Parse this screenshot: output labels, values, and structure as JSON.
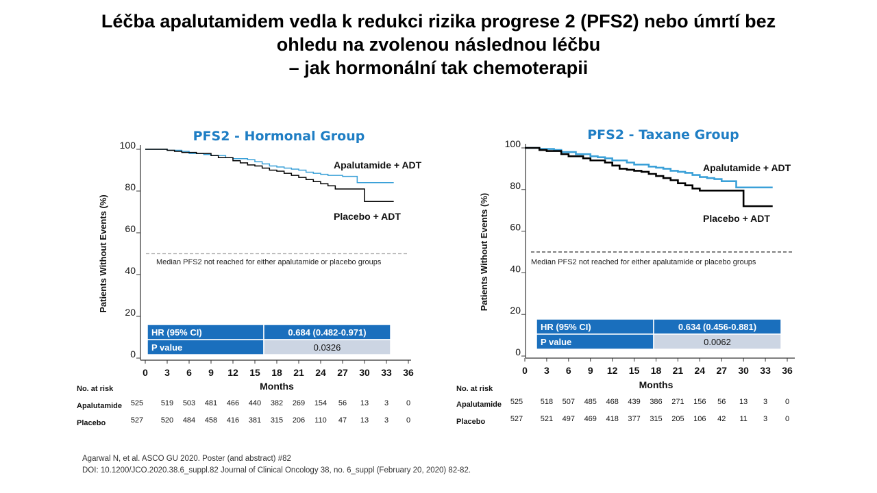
{
  "slide": {
    "title_lines": [
      "Léčba apalutamidem vedla k redukci rizika progrese 2 (PFS2) nebo úmrtí bez",
      "ohledu na zvolenou následnou léčbu",
      "– jak hormonální tak chemoterapii"
    ],
    "references": [
      "Agarwal N, et al. ASCO GU 2020. Poster (and abstract) #82",
      "DOI: 10.1200/JCO.2020.38.6_suppl.82  Journal of Clinical Oncology 38, no. 6_suppl (February 20, 2020) 82-82."
    ]
  },
  "colors": {
    "apalutamide": "#3aa0d8",
    "placebo": "#000000",
    "title_blue": "#1f7ec4",
    "table_blue": "#1a6fbd",
    "table_grey": "#ccd5e3",
    "median_line": "#999999"
  },
  "chart_data": [
    {
      "type": "line",
      "title": "PFS2 - Hormonal Group",
      "xlabel": "Months",
      "ylabel": "Patients Without Events (%)",
      "xlim": [
        0,
        36
      ],
      "ylim": [
        0,
        100
      ],
      "x_ticks": [
        0,
        3,
        6,
        9,
        12,
        15,
        18,
        21,
        24,
        27,
        30,
        33,
        36
      ],
      "y_ticks": [
        0,
        20,
        40,
        60,
        80,
        100
      ],
      "median_line": 50,
      "annotation": "Median PFS2 not reached for either apalutamide or placebo groups",
      "series": [
        {
          "name": "Apalutamide + ADT",
          "x": [
            0,
            3,
            5,
            6,
            8,
            9,
            11,
            12,
            14,
            15,
            16,
            17,
            18,
            19,
            20,
            21,
            22,
            23,
            24,
            25,
            26,
            27,
            28,
            29,
            30,
            31,
            32,
            33,
            34
          ],
          "y": [
            100,
            99.5,
            99,
            98,
            97.5,
            97,
            96,
            95.5,
            95,
            94,
            93,
            92,
            91.5,
            91,
            90.5,
            90,
            89,
            88.5,
            88,
            87.5,
            87.5,
            87,
            87,
            84,
            84,
            84,
            84,
            84,
            84
          ]
        },
        {
          "name": "Placebo + ADT",
          "x": [
            0,
            3,
            4,
            5,
            7,
            9,
            10,
            12,
            13,
            14,
            15,
            16,
            17,
            18,
            19,
            20,
            21,
            22,
            23,
            24,
            25,
            26,
            27,
            28,
            29,
            30,
            31,
            32,
            33,
            34
          ],
          "y": [
            100,
            99.5,
            99,
            98.5,
            98,
            97,
            96,
            94.5,
            93.5,
            92.5,
            92,
            91,
            90,
            89.5,
            88.5,
            87.5,
            86.5,
            85.5,
            84.5,
            83.5,
            82.5,
            81,
            81,
            81,
            81,
            75,
            75,
            75,
            75,
            75
          ]
        }
      ],
      "legend": "inside-right",
      "hr_table": {
        "rows": [
          {
            "label": "HR (95% CI)",
            "value": "0.684 (0.482-0.971)"
          },
          {
            "label": "P value",
            "value": "0.0326"
          }
        ]
      },
      "risk_table": {
        "header": "No. at risk",
        "rows": [
          {
            "label": "Apalutamide",
            "values": [
              "525",
              "519",
              "503",
              "481",
              "466",
              "440",
              "382",
              "269",
              "154",
              "56",
              "13",
              "3",
              "0"
            ]
          },
          {
            "label": "Placebo",
            "values": [
              "527",
              "520",
              "484",
              "458",
              "416",
              "381",
              "315",
              "206",
              "110",
              "47",
              "13",
              "3",
              "0"
            ]
          }
        ]
      }
    },
    {
      "type": "line",
      "title": "PFS2 - Taxane Group",
      "xlabel": "Months",
      "ylabel": "Patients Without Events (%)",
      "xlim": [
        0,
        36
      ],
      "ylim": [
        0,
        100
      ],
      "x_ticks": [
        0,
        3,
        6,
        9,
        12,
        15,
        18,
        21,
        24,
        27,
        30,
        33,
        36
      ],
      "y_ticks": [
        0,
        20,
        40,
        60,
        80,
        100
      ],
      "median_line": 50,
      "annotation": "Median PFS2 not reached for either apalutamide or placebo groups",
      "series": [
        {
          "name": "Apalutamide + ADT",
          "x": [
            0,
            2,
            4,
            5,
            7,
            9,
            10,
            11,
            12,
            14,
            15,
            17,
            18,
            19,
            20,
            21,
            22,
            23,
            24,
            25,
            26,
            27,
            28,
            29,
            30,
            31,
            32,
            33,
            34
          ],
          "y": [
            100,
            99.5,
            99,
            98,
            97,
            96,
            95.5,
            95,
            94,
            93,
            92,
            91,
            90.5,
            90,
            89,
            88.5,
            88,
            87,
            86,
            85.5,
            85,
            84,
            84,
            81,
            81,
            81,
            81,
            81,
            81
          ]
        },
        {
          "name": "Placebo + ADT",
          "x": [
            0,
            2,
            3,
            5,
            6,
            8,
            9,
            11,
            12,
            13,
            14,
            15,
            16,
            17,
            18,
            19,
            20,
            21,
            22,
            23,
            24,
            25,
            26,
            27,
            28,
            29,
            30,
            31,
            32,
            33,
            34
          ],
          "y": [
            100,
            99,
            98.5,
            97,
            96,
            95,
            94,
            93,
            91.5,
            90,
            89.5,
            89,
            88.5,
            87.5,
            86.5,
            85.5,
            84.5,
            83,
            82,
            80.5,
            79.5,
            79.5,
            79.5,
            79.5,
            79.5,
            79.5,
            72,
            72,
            72,
            72,
            72
          ]
        }
      ],
      "legend": "inside-right",
      "hr_table": {
        "rows": [
          {
            "label": "HR (95% CI)",
            "value": "0.634 (0.456-0.881)"
          },
          {
            "label": "P value",
            "value": "0.0062"
          }
        ]
      },
      "risk_table": {
        "header": "No. at risk",
        "rows": [
          {
            "label": "Apalutamide",
            "values": [
              "525",
              "518",
              "507",
              "485",
              "468",
              "439",
              "386",
              "271",
              "156",
              "56",
              "13",
              "3",
              "0"
            ]
          },
          {
            "label": "Placebo",
            "values": [
              "527",
              "521",
              "497",
              "469",
              "418",
              "377",
              "315",
              "205",
              "106",
              "42",
              "11",
              "3",
              "0"
            ]
          }
        ]
      }
    }
  ]
}
